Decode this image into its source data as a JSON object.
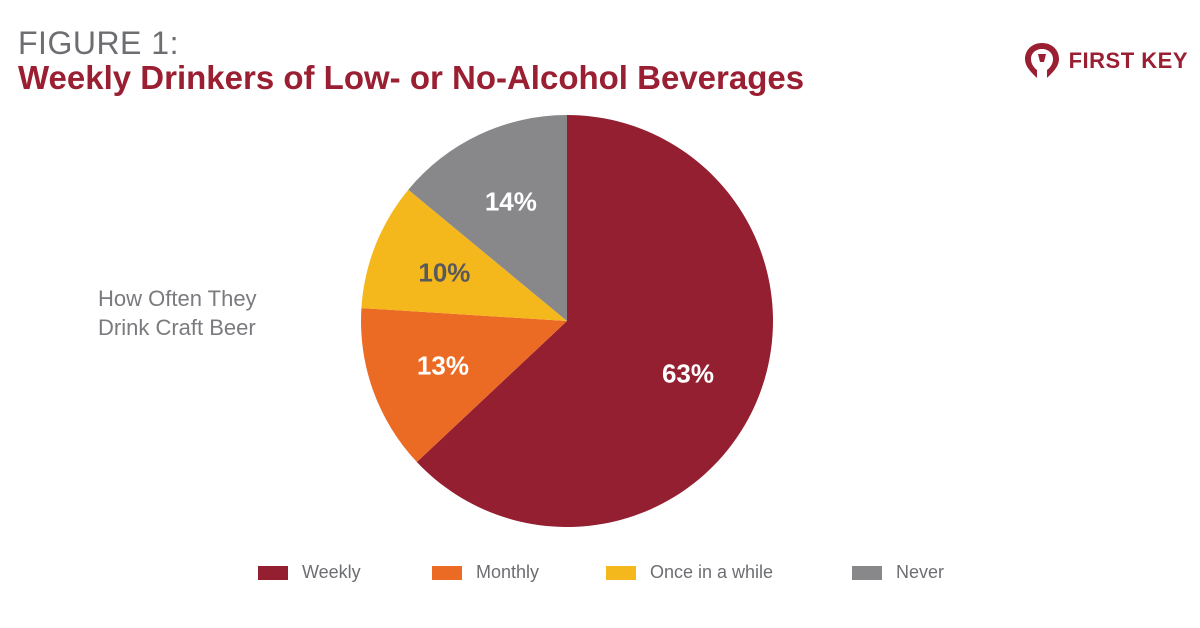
{
  "header": {
    "figure_label": "FIGURE 1:",
    "title": "Weekly Drinkers of Low- or No-Alcohol Beverages"
  },
  "logo": {
    "text": "FIRST KEY",
    "icon": "key-head-logo-icon"
  },
  "side_label": {
    "line1": "How Often They",
    "line2": "Drink Craft Beer"
  },
  "colors": {
    "weekly": "#931f31",
    "monthly": "#ec6b24",
    "once": "#f5b81c",
    "never": "#88888b",
    "brand": "#9a1f32"
  },
  "chart_data": {
    "type": "pie",
    "slices": [
      {
        "label": "Weekly",
        "value": 63,
        "display": "63%",
        "color": "#931f31"
      },
      {
        "label": "Monthly",
        "value": 13,
        "display": "13%",
        "color": "#ec6b24"
      },
      {
        "label": "Once in a while",
        "value": 10,
        "display": "10%",
        "color": "#f5b81c"
      },
      {
        "label": "Never",
        "value": 14,
        "display": "14%",
        "color": "#88888b"
      }
    ],
    "start_angle_deg": 0,
    "direction": "clockwise",
    "legend_position": "bottom"
  }
}
